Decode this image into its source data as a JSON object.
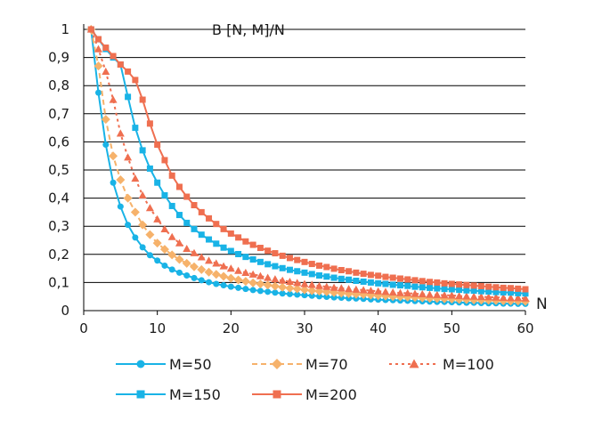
{
  "chart_data": {
    "type": "line",
    "title": "B [N, M]/N",
    "xlabel": "N",
    "ylabel": "",
    "xlim": [
      0,
      60
    ],
    "ylim": [
      0,
      1
    ],
    "x_ticks": [
      0,
      10,
      20,
      30,
      40,
      50,
      60
    ],
    "x_tick_labels": [
      "0",
      "10",
      "20",
      "30",
      "40",
      "50",
      "60"
    ],
    "y_ticks": [
      0,
      0.1,
      0.2,
      0.3,
      0.4,
      0.5,
      0.6,
      0.7,
      0.8,
      0.9,
      1
    ],
    "y_tick_labels": [
      "0",
      "0,1",
      "0,2",
      "0,3",
      "0,4",
      "0,5",
      "0,6",
      "0,7",
      "0,8",
      "0,9",
      "1"
    ],
    "grid": "horizontal",
    "legend_position": "bottom",
    "series": [
      {
        "name": "M=50",
        "color": "#19b3e6",
        "marker": "circle",
        "dash": "solid",
        "x": [
          1,
          2,
          3,
          4,
          5,
          6,
          7,
          8,
          9,
          10,
          11,
          12,
          13,
          14,
          15,
          16,
          17,
          18,
          19,
          20,
          21,
          22,
          23,
          24,
          25,
          26,
          27,
          28,
          29,
          30,
          31,
          32,
          33,
          34,
          35,
          36,
          37,
          38,
          39,
          40,
          41,
          42,
          43,
          44,
          45,
          46,
          47,
          48,
          49,
          50,
          51,
          52,
          53,
          54,
          55,
          56,
          57,
          58,
          59,
          60
        ],
        "values": [
          1,
          0.775,
          0.59,
          0.455,
          0.37,
          0.305,
          0.26,
          0.225,
          0.197,
          0.178,
          0.16,
          0.146,
          0.135,
          0.125,
          0.116,
          0.108,
          0.101,
          0.095,
          0.09,
          0.085,
          0.081,
          0.077,
          0.073,
          0.07,
          0.067,
          0.064,
          0.061,
          0.059,
          0.057,
          0.055,
          0.053,
          0.051,
          0.049,
          0.047,
          0.046,
          0.044,
          0.043,
          0.042,
          0.04,
          0.039,
          0.038,
          0.037,
          0.036,
          0.035,
          0.034,
          0.033,
          0.032,
          0.031,
          0.031,
          0.03,
          0.029,
          0.028,
          0.028,
          0.027,
          0.026,
          0.026,
          0.025,
          0.025,
          0.024,
          0.024
        ]
      },
      {
        "name": "M=70",
        "color": "#f6b26b",
        "marker": "diamond",
        "dash": "dash",
        "x": [
          1,
          2,
          3,
          4,
          5,
          6,
          7,
          8,
          9,
          10,
          11,
          12,
          13,
          14,
          15,
          16,
          17,
          18,
          19,
          20,
          21,
          22,
          23,
          24,
          25,
          26,
          27,
          28,
          29,
          30,
          31,
          32,
          33,
          34,
          35,
          36,
          37,
          38,
          39,
          40,
          41,
          42,
          43,
          44,
          45,
          46,
          47,
          48,
          49,
          50,
          51,
          52,
          53,
          54,
          55,
          56,
          57,
          58,
          59,
          60
        ],
        "values": [
          1,
          0.87,
          0.68,
          0.55,
          0.465,
          0.4,
          0.35,
          0.305,
          0.27,
          0.24,
          0.218,
          0.198,
          0.182,
          0.168,
          0.156,
          0.146,
          0.137,
          0.129,
          0.122,
          0.115,
          0.109,
          0.104,
          0.099,
          0.095,
          0.091,
          0.087,
          0.083,
          0.08,
          0.077,
          0.074,
          0.071,
          0.069,
          0.067,
          0.064,
          0.062,
          0.06,
          0.058,
          0.057,
          0.055,
          0.053,
          0.052,
          0.05,
          0.049,
          0.048,
          0.047,
          0.045,
          0.044,
          0.043,
          0.042,
          0.041,
          0.04,
          0.039,
          0.038,
          0.037,
          0.037,
          0.036,
          0.035,
          0.034,
          0.034,
          0.033
        ]
      },
      {
        "name": "M=100",
        "color": "#ef6f50",
        "marker": "triangle",
        "dash": "dot",
        "x": [
          1,
          2,
          3,
          4,
          5,
          6,
          7,
          8,
          9,
          10,
          11,
          12,
          13,
          14,
          15,
          16,
          17,
          18,
          19,
          20,
          21,
          22,
          23,
          24,
          25,
          26,
          27,
          28,
          29,
          30,
          31,
          32,
          33,
          34,
          35,
          36,
          37,
          38,
          39,
          40,
          41,
          42,
          43,
          44,
          45,
          46,
          47,
          48,
          49,
          50,
          51,
          52,
          53,
          54,
          55,
          56,
          57,
          58,
          59,
          60
        ],
        "values": [
          1,
          0.93,
          0.85,
          0.75,
          0.63,
          0.545,
          0.47,
          0.41,
          0.365,
          0.325,
          0.29,
          0.262,
          0.24,
          0.22,
          0.205,
          0.19,
          0.178,
          0.168,
          0.158,
          0.15,
          0.142,
          0.135,
          0.129,
          0.123,
          0.117,
          0.112,
          0.107,
          0.103,
          0.099,
          0.095,
          0.092,
          0.088,
          0.085,
          0.082,
          0.08,
          0.077,
          0.075,
          0.073,
          0.071,
          0.069,
          0.067,
          0.065,
          0.063,
          0.062,
          0.06,
          0.059,
          0.057,
          0.056,
          0.055,
          0.054,
          0.052,
          0.051,
          0.05,
          0.049,
          0.048,
          0.047,
          0.046,
          0.045,
          0.045,
          0.044
        ]
      },
      {
        "name": "M=150",
        "color": "#19b3e6",
        "marker": "square",
        "dash": "solid",
        "x": [
          1,
          2,
          3,
          4,
          5,
          6,
          7,
          8,
          9,
          10,
          11,
          12,
          13,
          14,
          15,
          16,
          17,
          18,
          19,
          20,
          21,
          22,
          23,
          24,
          25,
          26,
          27,
          28,
          29,
          30,
          31,
          32,
          33,
          34,
          35,
          36,
          37,
          38,
          39,
          40,
          41,
          42,
          43,
          44,
          45,
          46,
          47,
          48,
          49,
          50,
          51,
          52,
          53,
          54,
          55,
          56,
          57,
          58,
          59,
          60
        ],
        "values": [
          1,
          0.965,
          0.93,
          0.9,
          0.875,
          0.76,
          0.65,
          0.57,
          0.505,
          0.455,
          0.41,
          0.372,
          0.34,
          0.312,
          0.29,
          0.27,
          0.253,
          0.238,
          0.224,
          0.212,
          0.201,
          0.191,
          0.182,
          0.173,
          0.165,
          0.158,
          0.151,
          0.145,
          0.14,
          0.135,
          0.13,
          0.125,
          0.121,
          0.117,
          0.113,
          0.11,
          0.106,
          0.103,
          0.1,
          0.097,
          0.095,
          0.092,
          0.09,
          0.088,
          0.085,
          0.083,
          0.081,
          0.079,
          0.077,
          0.076,
          0.074,
          0.072,
          0.071,
          0.069,
          0.068,
          0.066,
          0.065,
          0.064,
          0.062,
          0.061
        ]
      },
      {
        "name": "M=200",
        "color": "#ef6f50",
        "marker": "square",
        "dash": "solid",
        "x": [
          1,
          2,
          3,
          4,
          5,
          6,
          7,
          8,
          9,
          10,
          11,
          12,
          13,
          14,
          15,
          16,
          17,
          18,
          19,
          20,
          21,
          22,
          23,
          24,
          25,
          26,
          27,
          28,
          29,
          30,
          31,
          32,
          33,
          34,
          35,
          36,
          37,
          38,
          39,
          40,
          41,
          42,
          43,
          44,
          45,
          46,
          47,
          48,
          49,
          50,
          51,
          52,
          53,
          54,
          55,
          56,
          57,
          58,
          59,
          60
        ],
        "values": [
          1,
          0.965,
          0.935,
          0.905,
          0.875,
          0.85,
          0.82,
          0.75,
          0.665,
          0.59,
          0.535,
          0.48,
          0.44,
          0.405,
          0.375,
          0.35,
          0.328,
          0.308,
          0.29,
          0.274,
          0.26,
          0.246,
          0.234,
          0.223,
          0.213,
          0.204,
          0.195,
          0.187,
          0.18,
          0.173,
          0.166,
          0.16,
          0.155,
          0.149,
          0.144,
          0.14,
          0.135,
          0.131,
          0.127,
          0.124,
          0.12,
          0.117,
          0.114,
          0.111,
          0.108,
          0.105,
          0.102,
          0.1,
          0.097,
          0.095,
          0.093,
          0.091,
          0.089,
          0.087,
          0.085,
          0.083,
          0.081,
          0.08,
          0.078,
          0.076
        ]
      }
    ]
  }
}
